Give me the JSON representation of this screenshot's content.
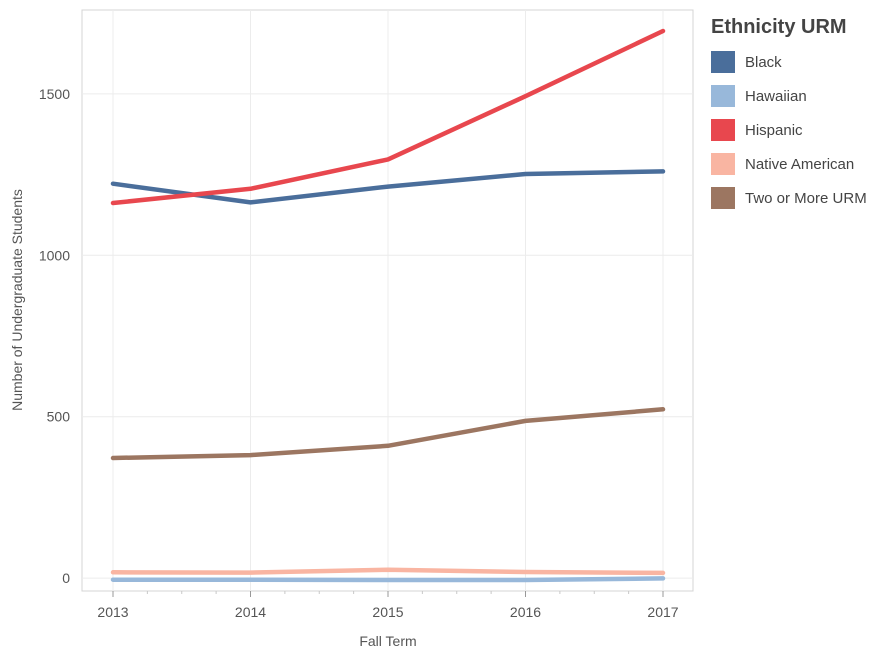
{
  "chart_data": {
    "type": "line",
    "x": [
      "2013",
      "2014",
      "2015",
      "2016",
      "2017"
    ],
    "xlabel": "Fall Term",
    "ylabel": "Number of Undergraduate Students",
    "ylim": [
      -40,
      1760
    ],
    "yticks": [
      0,
      500,
      1000,
      1500
    ],
    "grid": true,
    "legend_title": "Ethnicity URM",
    "legend_position": "right",
    "series": [
      {
        "name": "Black",
        "color": "#4a6e9b",
        "values": [
          1222,
          1164,
          1213,
          1252,
          1260
        ]
      },
      {
        "name": "Hawaiian",
        "color": "#98b8da",
        "values": [
          -5,
          -5,
          -6,
          -6,
          -1
        ]
      },
      {
        "name": "Hispanic",
        "color": "#e8474e",
        "values": [
          1162,
          1206,
          1297,
          1493,
          1695
        ]
      },
      {
        "name": "Native American",
        "color": "#f9b5a2",
        "values": [
          18,
          17,
          26,
          19,
          16
        ]
      },
      {
        "name": "Two or More URM",
        "color": "#9c7661",
        "values": [
          372,
          381,
          410,
          487,
          523
        ]
      }
    ]
  }
}
